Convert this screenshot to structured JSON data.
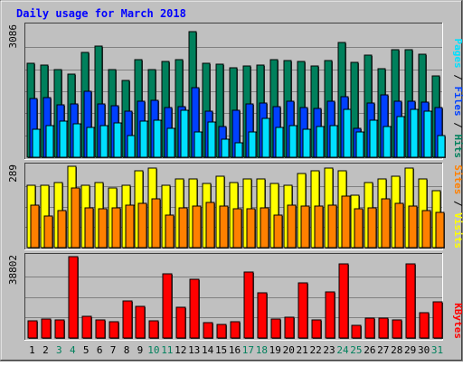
{
  "colors": {
    "background": "#c0c0c0",
    "plot_background": "#c0c0c0",
    "title": "#0000ff",
    "hits": "#00805c",
    "files": "#0040ff",
    "pages": "#00e0ff",
    "visits": "#ffff00",
    "sites": "#ff8000",
    "kbytes": "#ff0000",
    "weekend_label": "#00805c",
    "weekday_label": "#000000"
  },
  "chart_data": {
    "type": "bar",
    "title": "Daily usage for March 2018",
    "categories": [
      "1",
      "2",
      "3",
      "4",
      "5",
      "6",
      "7",
      "8",
      "9",
      "10",
      "11",
      "12",
      "13",
      "14",
      "15",
      "16",
      "17",
      "18",
      "19",
      "20",
      "21",
      "22",
      "23",
      "24",
      "25",
      "26",
      "27",
      "28",
      "29",
      "30",
      "31"
    ],
    "weekend_days": [
      "3",
      "4",
      "10",
      "11",
      "17",
      "18",
      "24",
      "25",
      "31"
    ],
    "panels": [
      {
        "legend": [
          "Pages",
          "/",
          "Files",
          "/",
          "Hits"
        ],
        "legend_colors": [
          "#00e0ff",
          "#000000",
          "#0040ff",
          "#000000",
          "#00805c"
        ],
        "ymax_label": "3086",
        "ylim": [
          0,
          3086
        ],
        "grid": true,
        "series": [
          {
            "name": "Hits",
            "values": [
              2200,
              2150,
              2040,
              1950,
              2460,
              2600,
              2050,
              1800,
              2290,
              2040,
              2240,
              2280,
              2930,
              2200,
              2180,
              2100,
              2130,
              2150,
              2280,
              2270,
              2230,
              2130,
              2270,
              2680,
              2210,
              2380,
              2070,
              2510,
              2520,
              2410,
              1910
            ]
          },
          {
            "name": "Files",
            "values": [
              1380,
              1390,
              1220,
              1240,
              1550,
              1240,
              1200,
              1080,
              1320,
              1330,
              1170,
              1190,
              1630,
              1080,
              720,
              1100,
              1250,
              1270,
              1190,
              1300,
              1160,
              1140,
              1310,
              1420,
              680,
              1260,
              1460,
              1310,
              1300,
              1280,
              1160
            ]
          },
          {
            "name": "Pages",
            "values": [
              660,
              740,
              840,
              790,
              690,
              730,
              800,
              510,
              840,
              860,
              680,
              1090,
              590,
              830,
              430,
              340,
              600,
              910,
              690,
              740,
              660,
              720,
              750,
              1130,
              590,
              860,
              720,
              950,
              1110,
              1070,
              510
            ]
          }
        ]
      },
      {
        "legend": [
          "Sites",
          "/",
          "Visits"
        ],
        "legend_colors": [
          "#ff8000",
          "#000000",
          "#ffff00"
        ],
        "ymax_label": "289",
        "ylim": [
          0,
          289
        ],
        "grid": true,
        "series": [
          {
            "name": "Visits",
            "values": [
              220,
              220,
              230,
              285,
              220,
              230,
              210,
              220,
              270,
              280,
              220,
              240,
              240,
              225,
              250,
              230,
              240,
              240,
              225,
              220,
              260,
              270,
              280,
              270,
              185,
              230,
              240,
              250,
              280,
              240,
              200
            ]
          },
          {
            "name": "Sites",
            "values": [
              150,
              110,
              130,
              210,
              140,
              135,
              140,
              150,
              155,
              170,
              115,
              140,
              145,
              160,
              145,
              135,
              135,
              140,
              115,
              150,
              145,
              145,
              150,
              180,
              135,
              140,
              170,
              155,
              145,
              130,
              125
            ]
          }
        ]
      },
      {
        "legend": [
          "KBytes"
        ],
        "legend_colors": [
          "#ff0000"
        ],
        "ymax_label": "38802",
        "ylim": [
          0,
          38802
        ],
        "grid": true,
        "series": [
          {
            "name": "KBytes",
            "values": [
              8200,
              8800,
              8500,
              38400,
              10200,
              8500,
              7700,
              17400,
              15100,
              8300,
              30400,
              14600,
              27800,
              7100,
              6400,
              7800,
              31200,
              21500,
              9100,
              9700,
              25900,
              8600,
              21900,
              34800,
              6000,
              9400,
              9500,
              8600,
              34800,
              11900,
              17000
            ]
          }
        ]
      }
    ]
  }
}
